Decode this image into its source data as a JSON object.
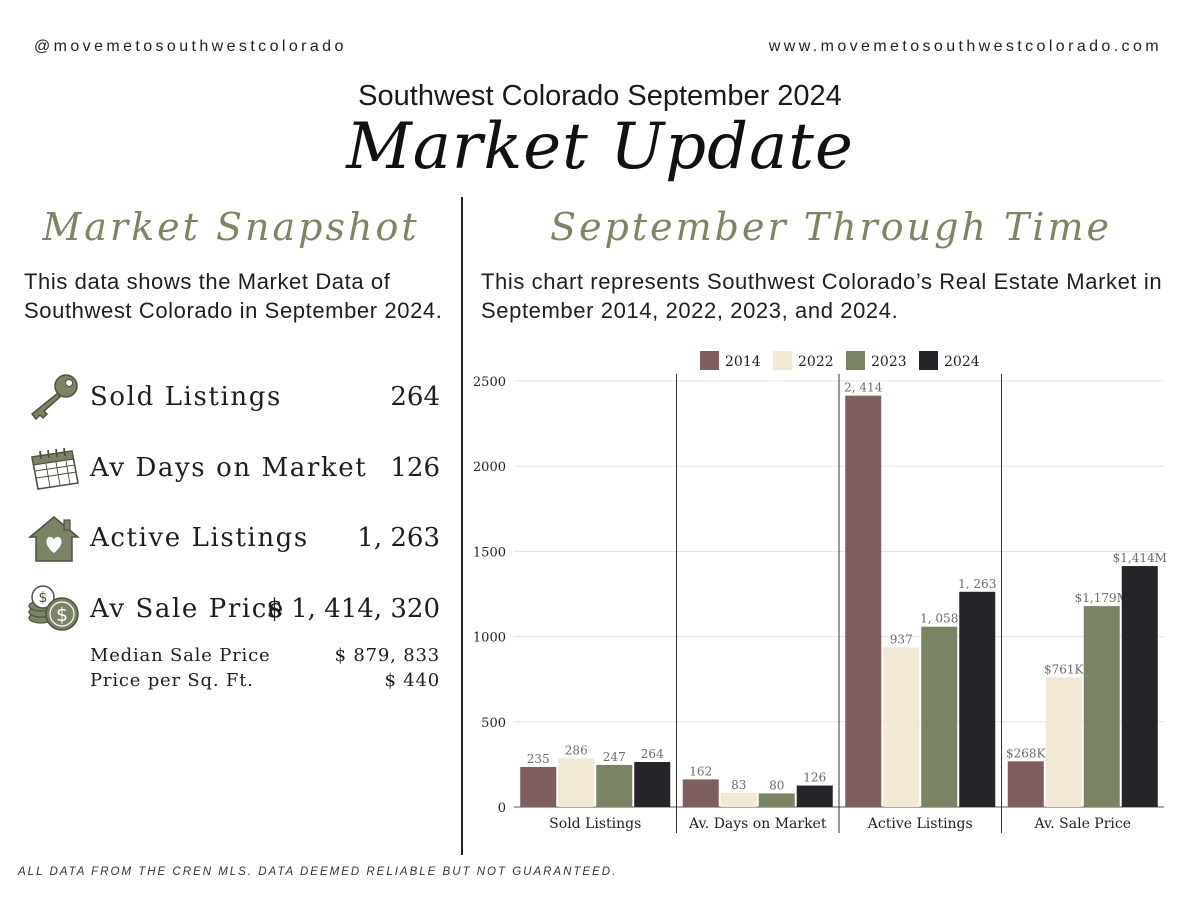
{
  "header": {
    "handle": "@movemetosouthwestcolorado",
    "website": "www.movemetosouthwestcolorado.com",
    "subtitle": "Southwest Colorado September 2024",
    "title": "Market Update"
  },
  "snapshot": {
    "heading": "Market Snapshot",
    "description": "This data shows the Market Data of Southwest Colorado in September 2024.",
    "stats": [
      {
        "label": "Sold Listings",
        "value": "264",
        "icon": "key-icon"
      },
      {
        "label": "Av Days on Market",
        "value": "126",
        "icon": "calendar-icon"
      },
      {
        "label": "Active Listings",
        "value": "1, 263",
        "icon": "house-heart-icon"
      },
      {
        "label": "Av Sale Price",
        "value": "$ 1, 414, 320",
        "icon": "coins-icon"
      }
    ],
    "median": {
      "label": "Median Sale Price",
      "value": "$ 879, 833"
    },
    "ppsf": {
      "label": "Price per Sq. Ft.",
      "value": "$ 440"
    }
  },
  "through_time": {
    "heading": "September Through Time",
    "description": "This chart represents Southwest Colorado’s Real Estate Market in September  2014, 2022, 2023, and 2024."
  },
  "footer": "ALL DATA FROM THE CREN MLS. DATA DEEMED RELIABLE BUT NOT GUARANTEED.",
  "colors": {
    "accent": "#7d8564",
    "y2014": "#7f5e60",
    "y2022": "#f1e8d6",
    "y2023": "#7a8464",
    "y2024": "#262428"
  },
  "chart_data": {
    "type": "bar",
    "title": "",
    "xlabel": "",
    "ylabel": "",
    "ylim": [
      0,
      2500
    ],
    "yticks": [
      0,
      500,
      1000,
      1500,
      2000,
      2500
    ],
    "legend_position": "top-center",
    "categories": [
      "Sold Listings",
      "Av. Days on Market",
      "Active Listings",
      "Av. Sale Price"
    ],
    "series": [
      {
        "name": "2014",
        "values": [
          235,
          162,
          2414,
          268
        ],
        "labels": [
          "235",
          "162",
          "2, 414",
          "$268K"
        ]
      },
      {
        "name": "2022",
        "values": [
          286,
          83,
          937,
          761
        ],
        "labels": [
          "286",
          "83",
          "937",
          "$761K"
        ]
      },
      {
        "name": "2023",
        "values": [
          247,
          80,
          1058,
          1179
        ],
        "labels": [
          "247",
          "80",
          "1, 058",
          "$1,179M"
        ]
      },
      {
        "name": "2024",
        "values": [
          264,
          126,
          1263,
          1414
        ],
        "labels": [
          "264",
          "126",
          "1, 263",
          "$1,414M"
        ]
      }
    ]
  }
}
